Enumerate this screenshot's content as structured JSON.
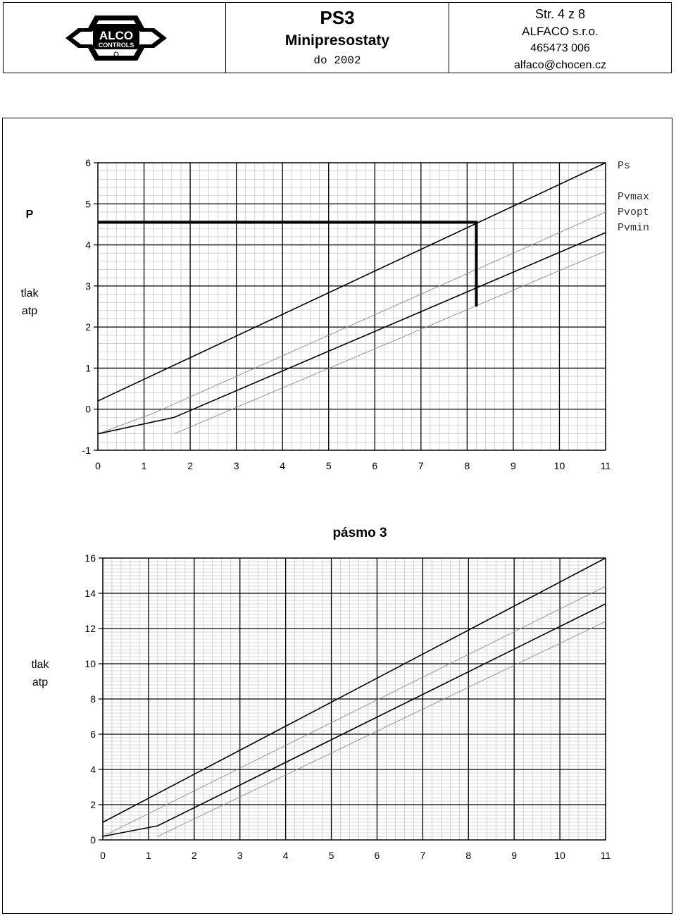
{
  "header": {
    "logo_text_top": "ALCO",
    "logo_text_bottom": "CONTROLS",
    "title": "PS3",
    "subtitle": "Minipresostaty",
    "date": "do 2002",
    "page": "Str. 4 z 8",
    "company": "ALFACO s.r.o.",
    "phone": "465473 006",
    "email": "alfaco@chocen.cz"
  },
  "chart_data": [
    {
      "type": "line",
      "title": "",
      "ylabel_top": "P",
      "ylabel": [
        "tlak",
        "atp"
      ],
      "xlim": [
        0,
        11
      ],
      "ylim": [
        -1,
        6
      ],
      "x_ticks": [
        "0",
        "1",
        "2",
        "3",
        "4",
        "5",
        "6",
        "7",
        "8",
        "9",
        "10",
        "11"
      ],
      "y_ticks": [
        "-1",
        "0",
        "1",
        "2",
        "3",
        "4",
        "5",
        "6"
      ],
      "legend": [
        "Ps",
        "Pvmax",
        "Pvopt",
        "Pvmin"
      ],
      "series": [
        {
          "name": "Pvmax",
          "style": "dark",
          "points": [
            [
              0,
              0.2
            ],
            [
              11,
              6
            ]
          ]
        },
        {
          "name": "Pvopt",
          "style": "light",
          "points": [
            [
              0,
              -0.6
            ],
            [
              1.2,
              -0.1
            ],
            [
              11,
              4.8
            ]
          ]
        },
        {
          "name": "Pvmin",
          "style": "dark",
          "points": [
            [
              0,
              -0.6
            ],
            [
              1.65,
              -0.2
            ],
            [
              11,
              4.3
            ]
          ]
        },
        {
          "style": "light",
          "points": [
            [
              1.65,
              -0.6
            ],
            [
              11,
              3.85
            ]
          ]
        }
      ],
      "marker": {
        "x": 8.2,
        "y": 4.55,
        "y_end": 2.5
      }
    },
    {
      "type": "line",
      "title": "pásmo 3",
      "ylabel": [
        "tlak",
        "atp"
      ],
      "xlim": [
        0,
        11
      ],
      "ylim": [
        0,
        16
      ],
      "x_ticks": [
        "0",
        "1",
        "2",
        "3",
        "4",
        "5",
        "6",
        "7",
        "8",
        "9",
        "10",
        "11"
      ],
      "y_ticks": [
        "0",
        "2",
        "4",
        "6",
        "8",
        "10",
        "12",
        "14",
        "16"
      ],
      "series": [
        {
          "style": "dark",
          "points": [
            [
              0,
              1
            ],
            [
              11,
              16
            ]
          ]
        },
        {
          "style": "light",
          "points": [
            [
              0,
              0.2
            ],
            [
              11,
              14.4
            ]
          ]
        },
        {
          "style": "dark",
          "points": [
            [
              0,
              0.2
            ],
            [
              1.2,
              0.8
            ],
            [
              11,
              13.4
            ]
          ]
        },
        {
          "style": "light",
          "points": [
            [
              1.2,
              0.2
            ],
            [
              11,
              12.4
            ]
          ]
        }
      ]
    }
  ]
}
